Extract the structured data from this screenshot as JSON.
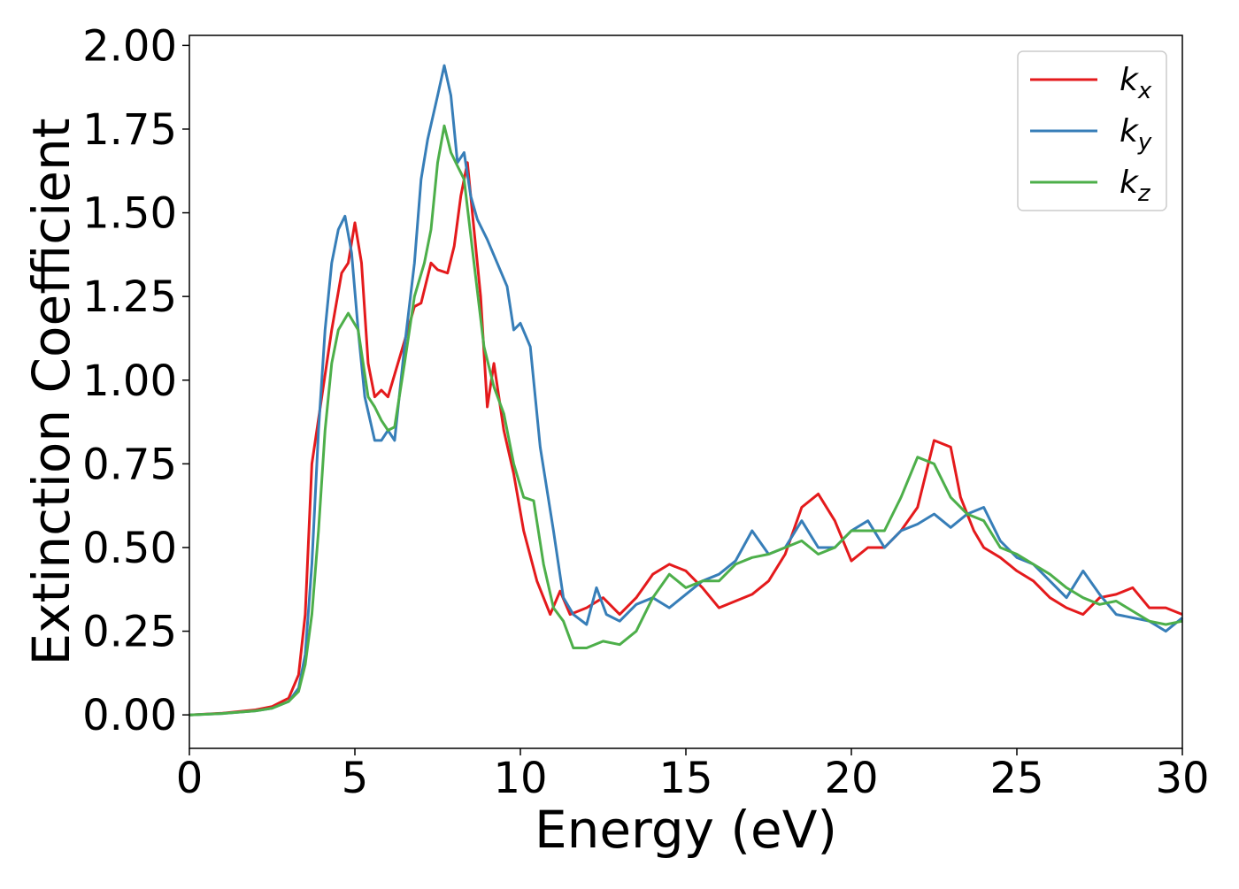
{
  "chart_data": {
    "type": "line",
    "xlabel": "Energy (eV)",
    "ylabel": "Extinction Coefficient",
    "xlim": [
      0,
      30
    ],
    "ylim": [
      -0.1,
      2.03
    ],
    "xticks": [
      "0",
      "5",
      "10",
      "15",
      "20",
      "25",
      "30"
    ],
    "yticks": [
      "0.00",
      "0.25",
      "0.50",
      "0.75",
      "1.00",
      "1.25",
      "1.50",
      "1.75",
      "2.00"
    ],
    "grid": false,
    "legend_position": "top-right",
    "series": [
      {
        "name": "k_x",
        "label_base": "k",
        "label_sub": "x",
        "color": "#e41a1c",
        "points": [
          [
            0,
            0
          ],
          [
            1,
            0.005
          ],
          [
            2,
            0.015
          ],
          [
            2.5,
            0.025
          ],
          [
            3,
            0.05
          ],
          [
            3.3,
            0.12
          ],
          [
            3.5,
            0.3
          ],
          [
            3.7,
            0.75
          ],
          [
            4,
            0.95
          ],
          [
            4.3,
            1.15
          ],
          [
            4.6,
            1.32
          ],
          [
            4.8,
            1.35
          ],
          [
            5,
            1.47
          ],
          [
            5.2,
            1.35
          ],
          [
            5.4,
            1.05
          ],
          [
            5.6,
            0.95
          ],
          [
            5.8,
            0.97
          ],
          [
            6,
            0.95
          ],
          [
            6.3,
            1.05
          ],
          [
            6.6,
            1.15
          ],
          [
            6.8,
            1.22
          ],
          [
            7,
            1.23
          ],
          [
            7.3,
            1.35
          ],
          [
            7.5,
            1.33
          ],
          [
            7.8,
            1.32
          ],
          [
            8,
            1.4
          ],
          [
            8.2,
            1.55
          ],
          [
            8.4,
            1.65
          ],
          [
            8.6,
            1.45
          ],
          [
            8.8,
            1.25
          ],
          [
            9,
            0.92
          ],
          [
            9.2,
            1.05
          ],
          [
            9.5,
            0.85
          ],
          [
            9.8,
            0.72
          ],
          [
            10.1,
            0.55
          ],
          [
            10.5,
            0.4
          ],
          [
            10.9,
            0.3
          ],
          [
            11.2,
            0.37
          ],
          [
            11.5,
            0.3
          ],
          [
            12,
            0.32
          ],
          [
            12.5,
            0.35
          ],
          [
            13,
            0.3
          ],
          [
            13.5,
            0.35
          ],
          [
            14,
            0.42
          ],
          [
            14.5,
            0.45
          ],
          [
            15,
            0.43
          ],
          [
            15.5,
            0.38
          ],
          [
            16,
            0.32
          ],
          [
            16.5,
            0.34
          ],
          [
            17,
            0.36
          ],
          [
            17.5,
            0.4
          ],
          [
            18,
            0.48
          ],
          [
            18.5,
            0.62
          ],
          [
            19,
            0.66
          ],
          [
            19.5,
            0.58
          ],
          [
            20,
            0.46
          ],
          [
            20.5,
            0.5
          ],
          [
            21,
            0.5
          ],
          [
            21.5,
            0.55
          ],
          [
            22,
            0.62
          ],
          [
            22.5,
            0.82
          ],
          [
            23,
            0.8
          ],
          [
            23.3,
            0.65
          ],
          [
            23.7,
            0.55
          ],
          [
            24,
            0.5
          ],
          [
            24.5,
            0.47
          ],
          [
            25,
            0.43
          ],
          [
            25.5,
            0.4
          ],
          [
            26,
            0.35
          ],
          [
            26.5,
            0.32
          ],
          [
            27,
            0.3
          ],
          [
            27.5,
            0.35
          ],
          [
            28,
            0.36
          ],
          [
            28.5,
            0.38
          ],
          [
            29,
            0.32
          ],
          [
            29.5,
            0.32
          ],
          [
            30,
            0.3
          ]
        ]
      },
      {
        "name": "k_y",
        "label_base": "k",
        "label_sub": "y",
        "color": "#377eb8",
        "points": [
          [
            0,
            0
          ],
          [
            1,
            0.004
          ],
          [
            2,
            0.012
          ],
          [
            2.5,
            0.02
          ],
          [
            3,
            0.04
          ],
          [
            3.3,
            0.08
          ],
          [
            3.5,
            0.18
          ],
          [
            3.7,
            0.45
          ],
          [
            3.9,
            0.85
          ],
          [
            4.1,
            1.15
          ],
          [
            4.3,
            1.35
          ],
          [
            4.5,
            1.45
          ],
          [
            4.7,
            1.49
          ],
          [
            4.9,
            1.38
          ],
          [
            5.1,
            1.15
          ],
          [
            5.3,
            0.95
          ],
          [
            5.6,
            0.82
          ],
          [
            5.8,
            0.82
          ],
          [
            6,
            0.85
          ],
          [
            6.2,
            0.82
          ],
          [
            6.5,
            1.1
          ],
          [
            6.8,
            1.35
          ],
          [
            7,
            1.6
          ],
          [
            7.2,
            1.72
          ],
          [
            7.5,
            1.85
          ],
          [
            7.7,
            1.94
          ],
          [
            7.9,
            1.85
          ],
          [
            8.1,
            1.65
          ],
          [
            8.3,
            1.68
          ],
          [
            8.5,
            1.55
          ],
          [
            8.7,
            1.48
          ],
          [
            9,
            1.42
          ],
          [
            9.3,
            1.35
          ],
          [
            9.6,
            1.28
          ],
          [
            9.8,
            1.15
          ],
          [
            10,
            1.17
          ],
          [
            10.3,
            1.1
          ],
          [
            10.6,
            0.8
          ],
          [
            11,
            0.55
          ],
          [
            11.3,
            0.35
          ],
          [
            11.6,
            0.3
          ],
          [
            12,
            0.27
          ],
          [
            12.3,
            0.38
          ],
          [
            12.6,
            0.3
          ],
          [
            13,
            0.28
          ],
          [
            13.5,
            0.33
          ],
          [
            14,
            0.35
          ],
          [
            14.5,
            0.32
          ],
          [
            15,
            0.36
          ],
          [
            15.5,
            0.4
          ],
          [
            16,
            0.42
          ],
          [
            16.5,
            0.46
          ],
          [
            17,
            0.55
          ],
          [
            17.5,
            0.48
          ],
          [
            18,
            0.5
          ],
          [
            18.5,
            0.58
          ],
          [
            19,
            0.5
          ],
          [
            19.5,
            0.5
          ],
          [
            20,
            0.55
          ],
          [
            20.5,
            0.58
          ],
          [
            21,
            0.5
          ],
          [
            21.5,
            0.55
          ],
          [
            22,
            0.57
          ],
          [
            22.5,
            0.6
          ],
          [
            23,
            0.56
          ],
          [
            23.5,
            0.6
          ],
          [
            24,
            0.62
          ],
          [
            24.5,
            0.52
          ],
          [
            25,
            0.47
          ],
          [
            25.5,
            0.45
          ],
          [
            26,
            0.4
          ],
          [
            26.5,
            0.35
          ],
          [
            27,
            0.43
          ],
          [
            27.5,
            0.36
          ],
          [
            28,
            0.3
          ],
          [
            28.5,
            0.29
          ],
          [
            29,
            0.28
          ],
          [
            29.5,
            0.25
          ],
          [
            30,
            0.29
          ]
        ]
      },
      {
        "name": "k_z",
        "label_base": "k",
        "label_sub": "z",
        "color": "#4daf4a",
        "points": [
          [
            0,
            0
          ],
          [
            1,
            0.004
          ],
          [
            2,
            0.012
          ],
          [
            2.5,
            0.02
          ],
          [
            3,
            0.04
          ],
          [
            3.3,
            0.07
          ],
          [
            3.5,
            0.15
          ],
          [
            3.7,
            0.3
          ],
          [
            3.9,
            0.55
          ],
          [
            4.1,
            0.85
          ],
          [
            4.3,
            1.05
          ],
          [
            4.5,
            1.15
          ],
          [
            4.8,
            1.2
          ],
          [
            5.1,
            1.15
          ],
          [
            5.4,
            0.95
          ],
          [
            5.6,
            0.92
          ],
          [
            5.8,
            0.88
          ],
          [
            6,
            0.85
          ],
          [
            6.2,
            0.86
          ],
          [
            6.5,
            1.05
          ],
          [
            6.8,
            1.25
          ],
          [
            7.1,
            1.35
          ],
          [
            7.3,
            1.45
          ],
          [
            7.5,
            1.65
          ],
          [
            7.7,
            1.76
          ],
          [
            7.9,
            1.68
          ],
          [
            8.1,
            1.64
          ],
          [
            8.3,
            1.6
          ],
          [
            8.6,
            1.35
          ],
          [
            8.9,
            1.1
          ],
          [
            9.2,
            0.98
          ],
          [
            9.5,
            0.9
          ],
          [
            9.8,
            0.75
          ],
          [
            10.1,
            0.65
          ],
          [
            10.4,
            0.64
          ],
          [
            10.7,
            0.45
          ],
          [
            11,
            0.32
          ],
          [
            11.3,
            0.28
          ],
          [
            11.6,
            0.2
          ],
          [
            12,
            0.2
          ],
          [
            12.5,
            0.22
          ],
          [
            13,
            0.21
          ],
          [
            13.5,
            0.25
          ],
          [
            14,
            0.35
          ],
          [
            14.5,
            0.42
          ],
          [
            15,
            0.38
          ],
          [
            15.5,
            0.4
          ],
          [
            16,
            0.4
          ],
          [
            16.5,
            0.45
          ],
          [
            17,
            0.47
          ],
          [
            17.5,
            0.48
          ],
          [
            18,
            0.5
          ],
          [
            18.5,
            0.52
          ],
          [
            19,
            0.48
          ],
          [
            19.5,
            0.5
          ],
          [
            20,
            0.55
          ],
          [
            20.5,
            0.55
          ],
          [
            21,
            0.55
          ],
          [
            21.5,
            0.65
          ],
          [
            22,
            0.77
          ],
          [
            22.5,
            0.75
          ],
          [
            23,
            0.65
          ],
          [
            23.5,
            0.6
          ],
          [
            24,
            0.58
          ],
          [
            24.5,
            0.5
          ],
          [
            25,
            0.48
          ],
          [
            25.5,
            0.45
          ],
          [
            26,
            0.42
          ],
          [
            26.5,
            0.38
          ],
          [
            27,
            0.35
          ],
          [
            27.5,
            0.33
          ],
          [
            28,
            0.34
          ],
          [
            28.5,
            0.31
          ],
          [
            29,
            0.28
          ],
          [
            29.5,
            0.27
          ],
          [
            30,
            0.28
          ]
        ]
      }
    ]
  }
}
